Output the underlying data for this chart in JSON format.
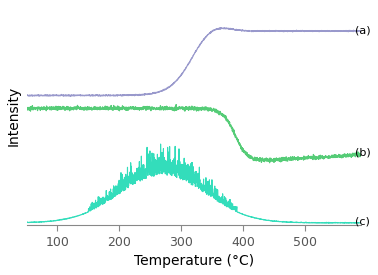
{
  "title": "",
  "xlabel": "Temperature (°C)",
  "ylabel": "Intensity",
  "xlim": [
    50,
    590
  ],
  "xticks": [
    100,
    200,
    300,
    400,
    500
  ],
  "color_a": "#9999cc",
  "color_b": "#55cc77",
  "color_c": "#33ddbb",
  "label_a": "(a)",
  "label_b": "(b)",
  "label_c": "(c)",
  "background": "#ffffff",
  "seed": 42
}
